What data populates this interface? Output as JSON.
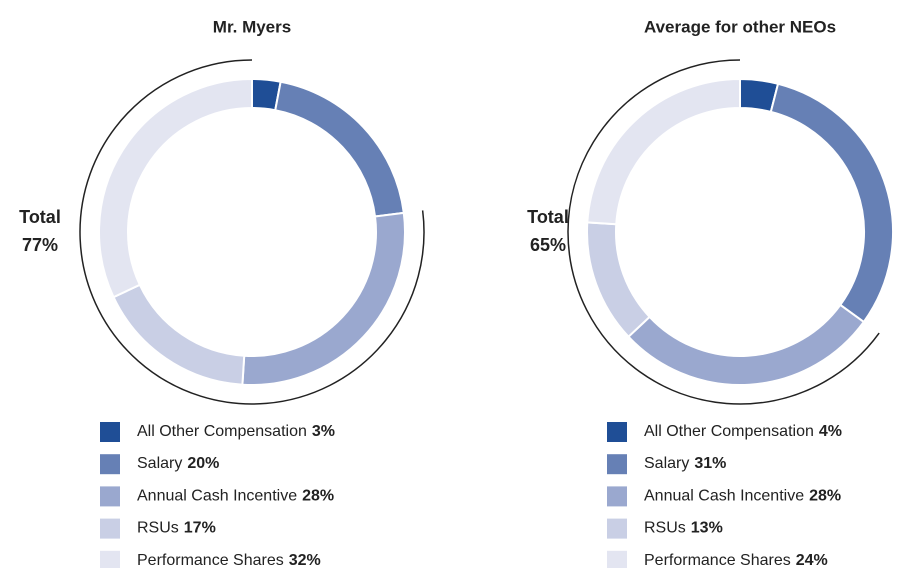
{
  "chart_data": [
    {
      "type": "donut",
      "title": "Mr. Myers",
      "categories": [
        "All Other Compensation",
        "Salary",
        "Annual Cash Incentive",
        "RSUs",
        "Performance Shares"
      ],
      "values": [
        3,
        20,
        28,
        17,
        32
      ],
      "value_labels": [
        "3%",
        "20%",
        "28%",
        "17%",
        "32%"
      ],
      "colors": [
        "#1f4e96",
        "#6680b5",
        "#9aa8cf",
        "#c9cfe5",
        "#e3e5f1"
      ],
      "annotation": "Total",
      "total": 77,
      "total_label": "77%"
    },
    {
      "type": "donut",
      "title": "Average for other NEOs",
      "categories": [
        "All Other Compensation",
        "Salary",
        "Annual Cash Incentive",
        "RSUs",
        "Performance Shares"
      ],
      "values": [
        4,
        31,
        28,
        13,
        24
      ],
      "value_labels": [
        "4%",
        "31%",
        "28%",
        "13%",
        "24%"
      ],
      "colors": [
        "#1f4e96",
        "#6680b5",
        "#9aa8cf",
        "#c9cfe5",
        "#e3e5f1"
      ],
      "annotation": "Total",
      "total": 65,
      "total_label": "65%"
    }
  ]
}
